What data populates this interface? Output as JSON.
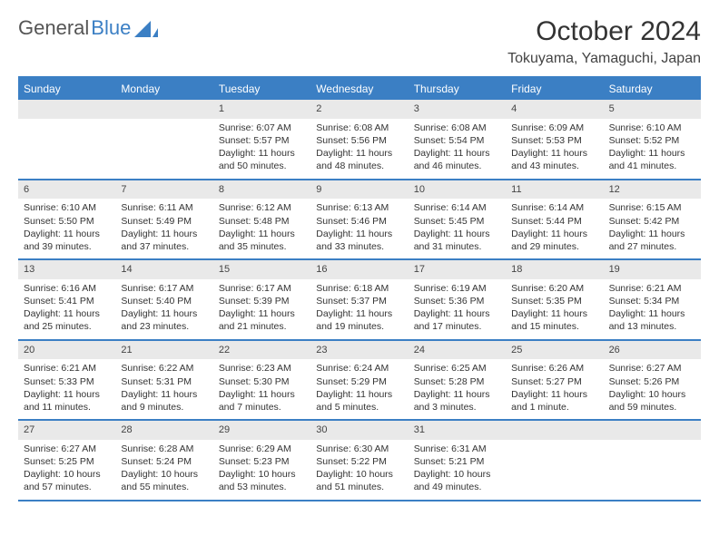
{
  "logo": {
    "text1": "General",
    "text2": "Blue"
  },
  "title": "October 2024",
  "location": "Tokuyama, Yamaguchi, Japan",
  "colors": {
    "accent": "#3b7fc4",
    "daynum_bg": "#e9e9e9",
    "border": "#3b7fc4"
  },
  "weekdays": [
    "Sunday",
    "Monday",
    "Tuesday",
    "Wednesday",
    "Thursday",
    "Friday",
    "Saturday"
  ],
  "weeks": [
    [
      null,
      null,
      {
        "n": "1",
        "sr": "Sunrise: 6:07 AM",
        "ss": "Sunset: 5:57 PM",
        "dl1": "Daylight: 11 hours",
        "dl2": "and 50 minutes."
      },
      {
        "n": "2",
        "sr": "Sunrise: 6:08 AM",
        "ss": "Sunset: 5:56 PM",
        "dl1": "Daylight: 11 hours",
        "dl2": "and 48 minutes."
      },
      {
        "n": "3",
        "sr": "Sunrise: 6:08 AM",
        "ss": "Sunset: 5:54 PM",
        "dl1": "Daylight: 11 hours",
        "dl2": "and 46 minutes."
      },
      {
        "n": "4",
        "sr": "Sunrise: 6:09 AM",
        "ss": "Sunset: 5:53 PM",
        "dl1": "Daylight: 11 hours",
        "dl2": "and 43 minutes."
      },
      {
        "n": "5",
        "sr": "Sunrise: 6:10 AM",
        "ss": "Sunset: 5:52 PM",
        "dl1": "Daylight: 11 hours",
        "dl2": "and 41 minutes."
      }
    ],
    [
      {
        "n": "6",
        "sr": "Sunrise: 6:10 AM",
        "ss": "Sunset: 5:50 PM",
        "dl1": "Daylight: 11 hours",
        "dl2": "and 39 minutes."
      },
      {
        "n": "7",
        "sr": "Sunrise: 6:11 AM",
        "ss": "Sunset: 5:49 PM",
        "dl1": "Daylight: 11 hours",
        "dl2": "and 37 minutes."
      },
      {
        "n": "8",
        "sr": "Sunrise: 6:12 AM",
        "ss": "Sunset: 5:48 PM",
        "dl1": "Daylight: 11 hours",
        "dl2": "and 35 minutes."
      },
      {
        "n": "9",
        "sr": "Sunrise: 6:13 AM",
        "ss": "Sunset: 5:46 PM",
        "dl1": "Daylight: 11 hours",
        "dl2": "and 33 minutes."
      },
      {
        "n": "10",
        "sr": "Sunrise: 6:14 AM",
        "ss": "Sunset: 5:45 PM",
        "dl1": "Daylight: 11 hours",
        "dl2": "and 31 minutes."
      },
      {
        "n": "11",
        "sr": "Sunrise: 6:14 AM",
        "ss": "Sunset: 5:44 PM",
        "dl1": "Daylight: 11 hours",
        "dl2": "and 29 minutes."
      },
      {
        "n": "12",
        "sr": "Sunrise: 6:15 AM",
        "ss": "Sunset: 5:42 PM",
        "dl1": "Daylight: 11 hours",
        "dl2": "and 27 minutes."
      }
    ],
    [
      {
        "n": "13",
        "sr": "Sunrise: 6:16 AM",
        "ss": "Sunset: 5:41 PM",
        "dl1": "Daylight: 11 hours",
        "dl2": "and 25 minutes."
      },
      {
        "n": "14",
        "sr": "Sunrise: 6:17 AM",
        "ss": "Sunset: 5:40 PM",
        "dl1": "Daylight: 11 hours",
        "dl2": "and 23 minutes."
      },
      {
        "n": "15",
        "sr": "Sunrise: 6:17 AM",
        "ss": "Sunset: 5:39 PM",
        "dl1": "Daylight: 11 hours",
        "dl2": "and 21 minutes."
      },
      {
        "n": "16",
        "sr": "Sunrise: 6:18 AM",
        "ss": "Sunset: 5:37 PM",
        "dl1": "Daylight: 11 hours",
        "dl2": "and 19 minutes."
      },
      {
        "n": "17",
        "sr": "Sunrise: 6:19 AM",
        "ss": "Sunset: 5:36 PM",
        "dl1": "Daylight: 11 hours",
        "dl2": "and 17 minutes."
      },
      {
        "n": "18",
        "sr": "Sunrise: 6:20 AM",
        "ss": "Sunset: 5:35 PM",
        "dl1": "Daylight: 11 hours",
        "dl2": "and 15 minutes."
      },
      {
        "n": "19",
        "sr": "Sunrise: 6:21 AM",
        "ss": "Sunset: 5:34 PM",
        "dl1": "Daylight: 11 hours",
        "dl2": "and 13 minutes."
      }
    ],
    [
      {
        "n": "20",
        "sr": "Sunrise: 6:21 AM",
        "ss": "Sunset: 5:33 PM",
        "dl1": "Daylight: 11 hours",
        "dl2": "and 11 minutes."
      },
      {
        "n": "21",
        "sr": "Sunrise: 6:22 AM",
        "ss": "Sunset: 5:31 PM",
        "dl1": "Daylight: 11 hours",
        "dl2": "and 9 minutes."
      },
      {
        "n": "22",
        "sr": "Sunrise: 6:23 AM",
        "ss": "Sunset: 5:30 PM",
        "dl1": "Daylight: 11 hours",
        "dl2": "and 7 minutes."
      },
      {
        "n": "23",
        "sr": "Sunrise: 6:24 AM",
        "ss": "Sunset: 5:29 PM",
        "dl1": "Daylight: 11 hours",
        "dl2": "and 5 minutes."
      },
      {
        "n": "24",
        "sr": "Sunrise: 6:25 AM",
        "ss": "Sunset: 5:28 PM",
        "dl1": "Daylight: 11 hours",
        "dl2": "and 3 minutes."
      },
      {
        "n": "25",
        "sr": "Sunrise: 6:26 AM",
        "ss": "Sunset: 5:27 PM",
        "dl1": "Daylight: 11 hours",
        "dl2": "and 1 minute."
      },
      {
        "n": "26",
        "sr": "Sunrise: 6:27 AM",
        "ss": "Sunset: 5:26 PM",
        "dl1": "Daylight: 10 hours",
        "dl2": "and 59 minutes."
      }
    ],
    [
      {
        "n": "27",
        "sr": "Sunrise: 6:27 AM",
        "ss": "Sunset: 5:25 PM",
        "dl1": "Daylight: 10 hours",
        "dl2": "and 57 minutes."
      },
      {
        "n": "28",
        "sr": "Sunrise: 6:28 AM",
        "ss": "Sunset: 5:24 PM",
        "dl1": "Daylight: 10 hours",
        "dl2": "and 55 minutes."
      },
      {
        "n": "29",
        "sr": "Sunrise: 6:29 AM",
        "ss": "Sunset: 5:23 PM",
        "dl1": "Daylight: 10 hours",
        "dl2": "and 53 minutes."
      },
      {
        "n": "30",
        "sr": "Sunrise: 6:30 AM",
        "ss": "Sunset: 5:22 PM",
        "dl1": "Daylight: 10 hours",
        "dl2": "and 51 minutes."
      },
      {
        "n": "31",
        "sr": "Sunrise: 6:31 AM",
        "ss": "Sunset: 5:21 PM",
        "dl1": "Daylight: 10 hours",
        "dl2": "and 49 minutes."
      },
      null,
      null
    ]
  ]
}
